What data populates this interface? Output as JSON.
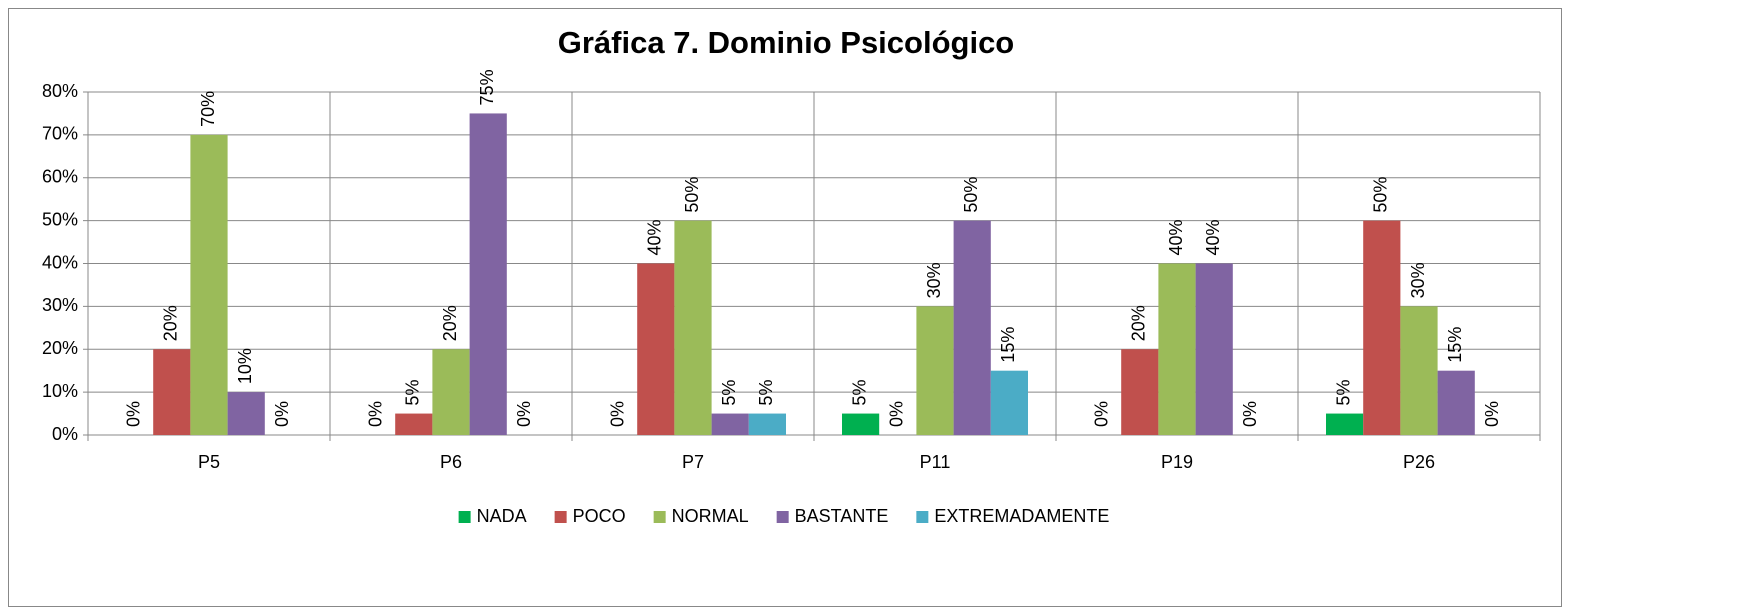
{
  "chart_data": {
    "type": "bar",
    "title": "Gráfica 7. Dominio Psicológico",
    "categories": [
      "P5",
      "P6",
      "P7",
      "P11",
      "P19",
      "P26"
    ],
    "series": [
      {
        "name": "NADA",
        "color": "#00b050",
        "values": [
          0,
          0,
          0,
          5,
          0,
          5
        ],
        "value_labels": [
          "0%",
          "0%",
          "0%",
          "5%",
          "0%",
          "5%"
        ]
      },
      {
        "name": "POCO",
        "color": "#c0504d",
        "values": [
          20,
          5,
          40,
          0,
          20,
          50
        ],
        "value_labels": [
          "20%",
          "5%",
          "40%",
          "0%",
          "20%",
          "50%"
        ]
      },
      {
        "name": "NORMAL",
        "color": "#9bbb59",
        "values": [
          70,
          20,
          50,
          30,
          40,
          30
        ],
        "value_labels": [
          "70%",
          "20%",
          "50%",
          "30%",
          "40%",
          "30%"
        ]
      },
      {
        "name": "BASTANTE",
        "color": "#8064a2",
        "values": [
          10,
          75,
          5,
          50,
          40,
          15
        ],
        "value_labels": [
          "10%",
          "75%",
          "5%",
          "50%",
          "40%",
          "15%"
        ]
      },
      {
        "name": "EXTREMADAMENTE",
        "color": "#4bacc6",
        "values": [
          0,
          0,
          5,
          15,
          0,
          0
        ],
        "value_labels": [
          "0%",
          "0%",
          "5%",
          "15%",
          "0%",
          "0%"
        ]
      }
    ],
    "ylim": [
      0,
      80
    ],
    "yticks": [
      {
        "value": 0,
        "label": "0%"
      },
      {
        "value": 10,
        "label": "10%"
      },
      {
        "value": 20,
        "label": "20%"
      },
      {
        "value": 30,
        "label": "30%"
      },
      {
        "value": 40,
        "label": "40%"
      },
      {
        "value": 50,
        "label": "50%"
      },
      {
        "value": 60,
        "label": "60%"
      },
      {
        "value": 70,
        "label": "70%"
      },
      {
        "value": 80,
        "label": "80%"
      }
    ],
    "grid": true,
    "legend": "bottom"
  }
}
